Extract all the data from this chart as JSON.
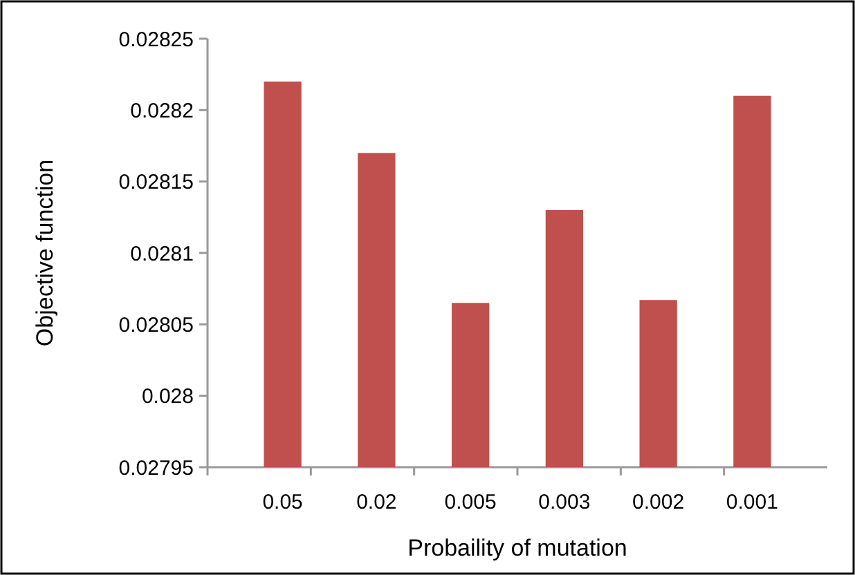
{
  "chart_data": {
    "type": "bar",
    "xlabel": "Probaility of mutation",
    "ylabel": "Objective function",
    "categories": [
      "0.05",
      "0.02",
      "0.005",
      "0.003",
      "0.002",
      "0.001"
    ],
    "values": [
      0.02822,
      0.02817,
      0.028065,
      0.02813,
      0.028067,
      0.02821
    ],
    "color": "#c0504d",
    "ylim": [
      0.02795,
      0.02825
    ],
    "yticks": [
      0.02795,
      0.028,
      0.02805,
      0.0281,
      0.02815,
      0.0282,
      0.02825
    ],
    "grid": false
  }
}
